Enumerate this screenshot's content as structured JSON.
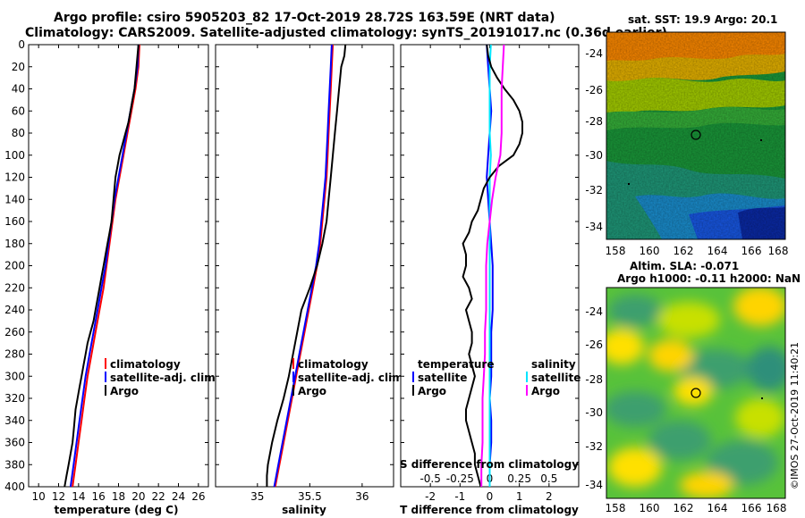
{
  "title_line1": "Argo profile: csiro 5905203_82 17-Oct-2019 28.72S 163.59E (NRT data)",
  "title_line2": "Climatology: CARS2009. Satellite-adjusted climatology: synTS_20191017.nc (0.36d earlier)",
  "colors": {
    "climatology": "#ff0000",
    "satellite": "#0000ff",
    "argo": "#000000",
    "sat_salinity": "#00e5ff",
    "clim_salinity": "#ff00ff"
  },
  "chart_data": [
    {
      "id": "temperature",
      "type": "line",
      "xlabel": "temperature (deg C)",
      "ylabel": "",
      "xlim": [
        9,
        27
      ],
      "ylim": [
        0,
        400
      ],
      "xticks": [
        10,
        12,
        14,
        16,
        18,
        20,
        22,
        24,
        26
      ],
      "yticks": [
        0,
        20,
        40,
        60,
        80,
        100,
        120,
        140,
        160,
        180,
        200,
        220,
        240,
        260,
        280,
        300,
        320,
        340,
        360,
        380,
        400
      ],
      "legend": [
        "climatology",
        "satellite-adj. clim.",
        "Argo"
      ],
      "legend_position": "lower-right",
      "series": [
        {
          "name": "climatology",
          "color": "#ff0000",
          "depth": [
            0,
            20,
            40,
            60,
            80,
            100,
            120,
            140,
            160,
            180,
            200,
            220,
            240,
            260,
            280,
            300,
            320,
            340,
            360,
            380,
            400
          ],
          "values": [
            20.1,
            20.0,
            19.7,
            19.3,
            18.9,
            18.5,
            18.1,
            17.7,
            17.4,
            17.1,
            16.8,
            16.5,
            16.1,
            15.7,
            15.3,
            14.9,
            14.6,
            14.3,
            14.0,
            13.7,
            13.4
          ]
        },
        {
          "name": "satellite-adj. clim.",
          "color": "#0000ff",
          "depth": [
            0,
            20,
            40,
            60,
            80,
            100,
            120,
            140,
            160,
            180,
            200,
            220,
            240,
            260,
            280,
            300,
            320,
            340,
            360,
            380,
            400
          ],
          "values": [
            20.0,
            19.9,
            19.6,
            19.2,
            18.8,
            18.4,
            18.0,
            17.6,
            17.3,
            17.0,
            16.7,
            16.3,
            15.9,
            15.5,
            15.1,
            14.7,
            14.4,
            14.1,
            13.8,
            13.5,
            13.2
          ]
        },
        {
          "name": "Argo",
          "color": "#000000",
          "depth": [
            0,
            10,
            20,
            30,
            40,
            50,
            60,
            70,
            80,
            90,
            100,
            110,
            120,
            130,
            140,
            150,
            160,
            170,
            180,
            190,
            200,
            210,
            220,
            230,
            240,
            250,
            260,
            270,
            280,
            290,
            300,
            310,
            320,
            330,
            340,
            350,
            360,
            370,
            380,
            390,
            400
          ],
          "values": [
            20.0,
            19.9,
            19.8,
            19.7,
            19.6,
            19.4,
            19.2,
            19.0,
            18.7,
            18.4,
            18.1,
            17.9,
            17.7,
            17.6,
            17.5,
            17.4,
            17.3,
            17.1,
            16.9,
            16.7,
            16.5,
            16.3,
            16.1,
            15.9,
            15.7,
            15.5,
            15.2,
            14.9,
            14.7,
            14.5,
            14.3,
            14.1,
            13.9,
            13.7,
            13.6,
            13.5,
            13.4,
            13.2,
            13.0,
            12.8,
            12.6
          ]
        }
      ]
    },
    {
      "id": "salinity",
      "type": "line",
      "xlabel": "salinity",
      "ylabel": "",
      "xlim": [
        34.6,
        36.3
      ],
      "ylim": [
        0,
        400
      ],
      "xticks": [
        35,
        35.5,
        36
      ],
      "xticklabels": [
        "35",
        "35.5",
        "36"
      ],
      "legend": [
        "climatology",
        "satellite-adj. clim.",
        "Argo"
      ],
      "legend_position": "lower-right",
      "series": [
        {
          "name": "climatology",
          "color": "#ff0000",
          "depth": [
            0,
            20,
            40,
            60,
            80,
            100,
            120,
            140,
            160,
            180,
            200,
            220,
            240,
            260,
            280,
            300,
            320,
            340,
            360,
            380,
            400
          ],
          "values": [
            35.72,
            35.71,
            35.7,
            35.69,
            35.68,
            35.67,
            35.66,
            35.64,
            35.62,
            35.6,
            35.57,
            35.53,
            35.49,
            35.45,
            35.41,
            35.37,
            35.33,
            35.29,
            35.25,
            35.21,
            35.17
          ]
        },
        {
          "name": "satellite-adj. clim.",
          "color": "#0000ff",
          "depth": [
            0,
            20,
            40,
            60,
            80,
            100,
            120,
            140,
            160,
            180,
            200,
            220,
            240,
            260,
            280,
            300,
            320,
            340,
            360,
            380,
            400
          ],
          "values": [
            35.71,
            35.7,
            35.69,
            35.68,
            35.67,
            35.66,
            35.65,
            35.63,
            35.61,
            35.59,
            35.56,
            35.52,
            35.48,
            35.44,
            35.4,
            35.36,
            35.32,
            35.28,
            35.24,
            35.2,
            35.16
          ]
        },
        {
          "name": "Argo",
          "color": "#000000",
          "depth": [
            0,
            10,
            20,
            40,
            60,
            80,
            100,
            120,
            140,
            160,
            180,
            200,
            220,
            240,
            260,
            280,
            300,
            320,
            340,
            360,
            380,
            390,
            400
          ],
          "values": [
            35.84,
            35.83,
            35.8,
            35.78,
            35.76,
            35.74,
            35.72,
            35.7,
            35.68,
            35.66,
            35.62,
            35.57,
            35.5,
            35.42,
            35.38,
            35.34,
            35.3,
            35.25,
            35.19,
            35.14,
            35.1,
            35.09,
            35.09
          ]
        }
      ]
    },
    {
      "id": "differences",
      "type": "line",
      "xlabel": "T difference from climatology",
      "xlabel2": "S difference from climatology",
      "ylabel": "",
      "xlim": [
        -3,
        3
      ],
      "xlim2": [
        -0.75,
        0.75
      ],
      "ylim": [
        0,
        400
      ],
      "xticks": [
        -2,
        -1,
        0,
        1,
        2
      ],
      "xticks2": [
        -0.5,
        -0.25,
        0,
        0.25,
        0.5
      ],
      "xticklabels2": [
        "-0.5",
        "-0.25",
        "0",
        "0.25",
        "0.5"
      ],
      "legend_temperature_title": "temperature",
      "legend_salinity_title": "salinity",
      "legend_temperature": [
        "satellite",
        "Argo"
      ],
      "legend_salinity": [
        "satellite",
        "Argo"
      ],
      "legend_position": "lower-center",
      "series": [
        {
          "name": "T satellite",
          "axis": "T",
          "color": "#0000ff",
          "depth": [
            0,
            20,
            40,
            60,
            80,
            100,
            120,
            140,
            160,
            180,
            200,
            220,
            240,
            260,
            280,
            300,
            320,
            340,
            360,
            380,
            400
          ],
          "values": [
            -0.1,
            -0.05,
            0.0,
            0.05,
            0.0,
            -0.05,
            -0.1,
            -0.05,
            0.0,
            0.05,
            0.1,
            0.1,
            0.1,
            0.05,
            0.05,
            0.05,
            0.0,
            0.05,
            0.05,
            0.0,
            0.0
          ]
        },
        {
          "name": "S satellite",
          "axis": "S",
          "color": "#00e5ff",
          "depth": [
            0,
            20,
            40,
            60,
            80,
            100,
            120,
            140,
            160,
            180,
            200,
            220,
            240,
            260,
            280,
            300,
            320,
            340,
            360,
            380,
            400
          ],
          "values": [
            0.01,
            0.0,
            0.0,
            0.0,
            0.0,
            0.01,
            0.0,
            0.0,
            0.0,
            0.0,
            0.0,
            0.0,
            0.0,
            0.0,
            0.0,
            0.0,
            0.0,
            0.0,
            0.0,
            0.0,
            0.0
          ]
        },
        {
          "name": "T Argo",
          "axis": "T",
          "color": "#000000",
          "depth": [
            0,
            10,
            20,
            30,
            40,
            50,
            60,
            70,
            80,
            90,
            100,
            110,
            120,
            130,
            140,
            150,
            160,
            170,
            180,
            190,
            200,
            210,
            220,
            230,
            240,
            250,
            260,
            270,
            280,
            290,
            300,
            310,
            320,
            330,
            340,
            350,
            360,
            370,
            380,
            390,
            400
          ],
          "values": [
            -0.1,
            -0.05,
            0.05,
            0.25,
            0.5,
            0.8,
            1.0,
            1.1,
            1.1,
            1.0,
            0.8,
            0.3,
            0.0,
            -0.2,
            -0.3,
            -0.4,
            -0.6,
            -0.7,
            -0.9,
            -0.8,
            -0.8,
            -0.9,
            -0.7,
            -0.6,
            -0.8,
            -0.7,
            -0.6,
            -0.6,
            -0.7,
            -0.6,
            -0.5,
            -0.6,
            -0.7,
            -0.8,
            -0.8,
            -0.7,
            -0.6,
            -0.5,
            -0.5,
            -0.4,
            -0.3
          ]
        },
        {
          "name": "S Argo",
          "axis": "S",
          "color": "#ff00ff",
          "depth": [
            0,
            20,
            40,
            60,
            80,
            100,
            120,
            140,
            160,
            180,
            200,
            220,
            240,
            260,
            280,
            300,
            320,
            340,
            360,
            380,
            400
          ],
          "values": [
            0.12,
            0.11,
            0.1,
            0.1,
            0.1,
            0.09,
            0.05,
            0.02,
            0.0,
            -0.02,
            -0.03,
            -0.03,
            -0.03,
            -0.04,
            -0.04,
            -0.05,
            -0.06,
            -0.06,
            -0.06,
            -0.07,
            -0.07
          ]
        }
      ]
    }
  ],
  "maps": {
    "sst": {
      "title": "sat. SST: 19.9 Argo: 20.1",
      "xticks": [
        "158",
        "160",
        "162",
        "164",
        "166",
        "168"
      ],
      "yticks": [
        "-24",
        "-26",
        "-28",
        "-30",
        "-32",
        "-34"
      ]
    },
    "sla": {
      "title_line1": "Altim. SLA: -0.071",
      "title_line2": "Argo h1000: -0.11 h2000: NaN",
      "xticks": [
        "158",
        "160",
        "162",
        "164",
        "166",
        "168"
      ],
      "yticks": [
        "-24",
        "-26",
        "-28",
        "-30",
        "-32",
        "-34"
      ]
    }
  },
  "stamp": "©IMOS 27-Oct-2019 11:40:21"
}
